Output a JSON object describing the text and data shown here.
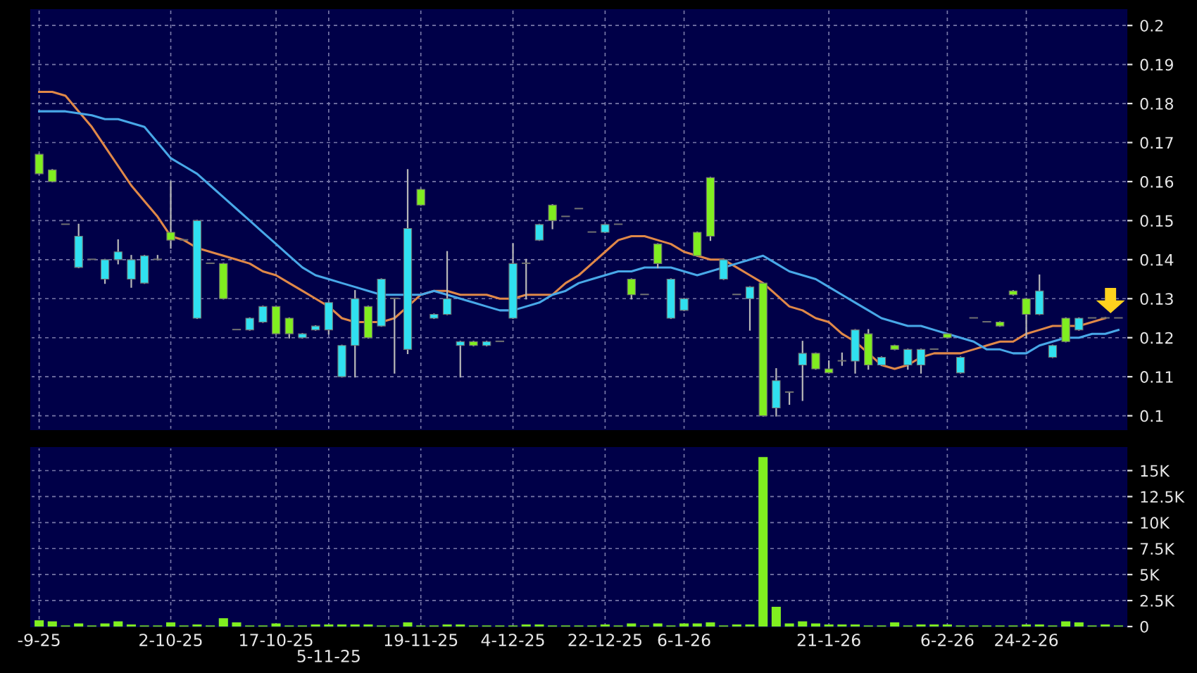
{
  "chart_data": [
    {
      "type": "candlestick",
      "tick_labels": "y",
      "grid": true,
      "legend": false,
      "categories": [
        null,
        null,
        null,
        null,
        null,
        null,
        null,
        null,
        null,
        null,
        null,
        null,
        null,
        null,
        null,
        null,
        null,
        null,
        null,
        null,
        null,
        null,
        null,
        null,
        null,
        null,
        null,
        null,
        null,
        null,
        null,
        null,
        null,
        null,
        null,
        null,
        null,
        null,
        null,
        null,
        null,
        null,
        null,
        null,
        null,
        null,
        null,
        null,
        null,
        null,
        null,
        null,
        null,
        null,
        null,
        null,
        null,
        null,
        null,
        null,
        null,
        null,
        null,
        null,
        null,
        null,
        null,
        null,
        null,
        null,
        null,
        null,
        null,
        null,
        null,
        null,
        null,
        null,
        null,
        null,
        null,
        null,
        null
      ],
      "ohlc": [
        [
          0.167,
          0.167,
          0.162,
          0.162
        ],
        [
          0.163,
          0.163,
          0.16,
          0.16
        ],
        [
          0.149,
          0.149,
          0.149,
          0.149
        ],
        [
          0.138,
          0.149,
          0.138,
          0.146
        ],
        [
          0.14,
          0.14,
          0.14,
          0.14
        ],
        [
          0.135,
          0.14,
          0.134,
          0.14
        ],
        [
          0.14,
          0.145,
          0.139,
          0.142
        ],
        [
          0.135,
          0.141,
          0.133,
          0.14
        ],
        [
          0.134,
          0.141,
          0.134,
          0.141
        ],
        [
          0.14,
          0.141,
          0.14,
          0.14
        ],
        [
          0.147,
          0.16,
          0.143,
          0.145
        ],
        [
          0.145,
          0.145,
          0.145,
          0.145
        ],
        [
          0.125,
          0.15,
          0.125,
          0.15
        ],
        [
          0.139,
          0.139,
          0.139,
          0.139
        ],
        [
          0.139,
          0.139,
          0.13,
          0.13
        ],
        [
          0.122,
          0.122,
          0.122,
          0.122
        ],
        [
          0.122,
          0.125,
          0.122,
          0.125
        ],
        [
          0.124,
          0.128,
          0.124,
          0.128
        ],
        [
          0.128,
          0.128,
          0.121,
          0.121
        ],
        [
          0.125,
          0.125,
          0.12,
          0.121
        ],
        [
          0.12,
          0.121,
          0.12,
          0.121
        ],
        [
          0.122,
          0.123,
          0.122,
          0.123
        ],
        [
          0.122,
          0.129,
          0.121,
          0.129
        ],
        [
          0.11,
          0.118,
          0.11,
          0.118
        ],
        [
          0.118,
          0.132,
          0.11,
          0.13
        ],
        [
          0.128,
          0.128,
          0.12,
          0.12
        ],
        [
          0.123,
          0.135,
          0.123,
          0.135
        ],
        [
          0.13,
          0.13,
          0.111,
          0.13
        ],
        [
          0.117,
          0.163,
          0.116,
          0.148
        ],
        [
          0.158,
          0.158,
          0.154,
          0.154
        ],
        [
          0.125,
          0.126,
          0.125,
          0.126
        ],
        [
          0.126,
          0.142,
          0.126,
          0.13
        ],
        [
          0.118,
          0.119,
          0.11,
          0.119
        ],
        [
          0.119,
          0.119,
          0.118,
          0.118
        ],
        [
          0.118,
          0.119,
          0.118,
          0.119
        ],
        [
          0.119,
          0.119,
          0.119,
          0.119
        ],
        [
          0.125,
          0.144,
          0.125,
          0.139
        ],
        [
          0.139,
          0.14,
          0.13,
          0.139
        ],
        [
          0.145,
          0.149,
          0.145,
          0.149
        ],
        [
          0.154,
          0.154,
          0.148,
          0.15
        ],
        [
          0.151,
          0.151,
          0.151,
          0.151
        ],
        [
          0.153,
          0.153,
          0.153,
          0.153
        ],
        [
          0.147,
          0.147,
          0.147,
          0.147
        ],
        [
          0.147,
          0.149,
          0.147,
          0.149
        ],
        [
          0.149,
          0.149,
          0.149,
          0.149
        ],
        [
          0.135,
          0.135,
          0.13,
          0.131
        ],
        [
          0.131,
          0.131,
          0.131,
          0.131
        ],
        [
          0.144,
          0.144,
          0.138,
          0.139
        ],
        [
          0.125,
          0.135,
          0.125,
          0.135
        ],
        [
          0.127,
          0.13,
          0.127,
          0.13
        ],
        [
          0.147,
          0.147,
          0.141,
          0.141
        ],
        [
          0.161,
          0.161,
          0.145,
          0.146
        ],
        [
          0.135,
          0.14,
          0.135,
          0.14
        ],
        [
          0.131,
          0.131,
          0.131,
          0.131
        ],
        [
          0.13,
          0.133,
          0.122,
          0.133
        ],
        [
          0.134,
          0.134,
          0.1,
          0.1
        ],
        [
          0.102,
          0.112,
          0.1,
          0.109
        ],
        [
          0.106,
          0.106,
          0.103,
          0.106
        ],
        [
          0.113,
          0.119,
          0.104,
          0.116
        ],
        [
          0.116,
          0.116,
          0.112,
          0.112
        ],
        [
          0.112,
          0.114,
          0.111,
          0.111
        ],
        [
          0.114,
          0.116,
          0.113,
          0.114
        ],
        [
          0.114,
          0.122,
          0.111,
          0.122
        ],
        [
          0.121,
          0.122,
          0.112,
          0.113
        ],
        [
          0.113,
          0.115,
          0.113,
          0.115
        ],
        [
          0.118,
          0.118,
          0.117,
          0.117
        ],
        [
          0.113,
          0.117,
          0.112,
          0.117
        ],
        [
          0.113,
          0.117,
          0.111,
          0.117
        ],
        [
          0.117,
          0.117,
          0.117,
          0.117
        ],
        [
          0.121,
          0.121,
          0.12,
          0.12
        ],
        [
          0.111,
          0.115,
          0.111,
          0.115
        ],
        [
          0.125,
          0.125,
          0.125,
          0.125
        ],
        [
          0.124,
          0.124,
          0.124,
          0.124
        ],
        [
          0.124,
          0.124,
          0.123,
          0.123
        ],
        [
          0.132,
          0.132,
          0.131,
          0.131
        ],
        [
          0.13,
          0.13,
          0.12,
          0.126
        ],
        [
          0.126,
          0.136,
          0.126,
          0.132
        ],
        [
          0.115,
          0.118,
          0.115,
          0.118
        ],
        [
          0.125,
          0.125,
          0.119,
          0.119
        ],
        [
          0.122,
          0.125,
          0.122,
          0.125
        ],
        [
          0.125,
          0.125,
          0.125,
          0.125
        ],
        [
          0.125,
          0.125,
          0.125,
          0.125
        ],
        [
          0.125,
          0.125,
          0.125,
          0.125
        ]
      ],
      "colors": [
        "#80ee20",
        "#80ee20",
        "#b0b0b0",
        "#30e0f0",
        "#b0b0b0",
        "#30e0f0",
        "#30e0f0",
        "#30e0f0",
        "#30e0f0",
        "#b0b0b0",
        "#80ee20",
        "#b0b0b0",
        "#30e0f0",
        "#b0b0b0",
        "#80ee20",
        "#b0b0b0",
        "#30e0f0",
        "#30e0f0",
        "#80ee20",
        "#80ee20",
        "#30e0f0",
        "#30e0f0",
        "#30e0f0",
        "#30e0f0",
        "#30e0f0",
        "#80ee20",
        "#30e0f0",
        "#b0b0b0",
        "#30e0f0",
        "#80ee20",
        "#30e0f0",
        "#30e0f0",
        "#30e0f0",
        "#80ee20",
        "#30e0f0",
        "#b0b0b0",
        "#30e0f0",
        "#b0b0b0",
        "#30e0f0",
        "#80ee20",
        "#b0b0b0",
        "#b0b0b0",
        "#b0b0b0",
        "#30e0f0",
        "#b0b0b0",
        "#80ee20",
        "#b0b0b0",
        "#80ee20",
        "#30e0f0",
        "#30e0f0",
        "#80ee20",
        "#80ee20",
        "#30e0f0",
        "#b0b0b0",
        "#30e0f0",
        "#80ee20",
        "#30e0f0",
        "#b0b0b0",
        "#30e0f0",
        "#80ee20",
        "#80ee20",
        "#b0b0b0",
        "#30e0f0",
        "#80ee20",
        "#30e0f0",
        "#80ee20",
        "#30e0f0",
        "#30e0f0",
        "#b0b0b0",
        "#80ee20",
        "#30e0f0",
        "#b0b0b0",
        "#b0b0b0",
        "#80ee20",
        "#80ee20",
        "#80ee20",
        "#30e0f0",
        "#30e0f0",
        "#80ee20",
        "#30e0f0",
        "#b0b0b0",
        "#b0b0b0",
        "#b0b0b0"
      ],
      "series": [
        {
          "type": "line",
          "color": "#e08848",
          "values": [
            0.183,
            0.183,
            0.182,
            0.178,
            0.174,
            0.169,
            0.164,
            0.159,
            0.155,
            0.151,
            0.146,
            0.145,
            0.143,
            0.142,
            0.141,
            0.14,
            0.139,
            0.137,
            0.136,
            0.134,
            0.132,
            0.13,
            0.128,
            0.125,
            0.124,
            0.124,
            0.124,
            0.125,
            0.128,
            0.131,
            0.132,
            0.132,
            0.131,
            0.131,
            0.131,
            0.13,
            0.13,
            0.131,
            0.131,
            0.131,
            0.134,
            0.136,
            0.139,
            0.142,
            0.145,
            0.146,
            0.146,
            0.145,
            0.144,
            0.142,
            0.141,
            0.14,
            0.14,
            0.138,
            0.136,
            0.134,
            0.131,
            0.128,
            0.127,
            0.125,
            0.124,
            0.121,
            0.119,
            0.116,
            0.113,
            0.112,
            0.113,
            0.115,
            0.116,
            0.116,
            0.116,
            0.117,
            0.118,
            0.119,
            0.119,
            0.121,
            0.122,
            0.123,
            0.123,
            0.123,
            0.124,
            0.125,
            null
          ]
        },
        {
          "type": "line",
          "color": "#48a8e8",
          "values": [
            0.178,
            0.178,
            0.178,
            0.1775,
            0.177,
            0.176,
            0.176,
            0.175,
            0.174,
            0.17,
            0.166,
            0.164,
            0.162,
            0.159,
            0.156,
            0.153,
            0.15,
            0.147,
            0.144,
            0.141,
            0.138,
            0.136,
            0.135,
            0.134,
            0.133,
            0.132,
            0.131,
            0.131,
            0.131,
            0.131,
            0.132,
            0.131,
            0.13,
            0.129,
            0.128,
            0.127,
            0.127,
            0.128,
            0.129,
            0.131,
            0.132,
            0.134,
            0.135,
            0.136,
            0.137,
            0.137,
            0.138,
            0.138,
            0.138,
            0.137,
            0.136,
            0.137,
            0.138,
            0.139,
            0.14,
            0.141,
            0.139,
            0.137,
            0.136,
            0.135,
            0.133,
            0.131,
            0.129,
            0.127,
            0.125,
            0.124,
            0.123,
            0.123,
            0.122,
            0.121,
            0.12,
            0.119,
            0.117,
            0.117,
            0.116,
            0.116,
            0.118,
            0.119,
            0.12,
            0.12,
            0.121,
            0.121,
            0.122
          ]
        }
      ],
      "ylim": [
        0.0965,
        0.204
      ],
      "yticks": [
        0.1,
        0.11,
        0.12,
        0.13,
        0.14,
        0.15,
        0.16,
        0.17,
        0.18,
        0.19,
        0.2
      ]
    },
    {
      "type": "bar",
      "grid": true,
      "legend": false,
      "color": "#80ee20",
      "categories": [
        "-9-25",
        null,
        null,
        null,
        null,
        null,
        null,
        null,
        null,
        null,
        "2-10-25",
        null,
        null,
        null,
        null,
        null,
        null,
        null,
        "17-10-25",
        null,
        null,
        null,
        "5-11-25",
        null,
        null,
        null,
        null,
        null,
        null,
        "19-11-25",
        null,
        null,
        null,
        null,
        null,
        null,
        "4-12-25",
        null,
        null,
        null,
        null,
        null,
        null,
        "22-12-25",
        null,
        null,
        null,
        null,
        null,
        "6-1-26",
        null,
        null,
        null,
        null,
        null,
        null,
        null,
        null,
        null,
        null,
        "21-1-26",
        null,
        null,
        null,
        null,
        null,
        null,
        null,
        null,
        "6-2-26",
        null,
        null,
        null,
        null,
        null,
        "24-2-26",
        null,
        null,
        null,
        null,
        null,
        null,
        null
      ],
      "values": [
        0.6,
        0.5,
        0.1,
        0.3,
        0.1,
        0.3,
        0.5,
        0.2,
        0.1,
        0.1,
        0.4,
        0.1,
        0.2,
        0.1,
        0.8,
        0.4,
        0.1,
        0.1,
        0.3,
        0.1,
        0.1,
        0.2,
        0.2,
        0.2,
        0.2,
        0.2,
        0.1,
        0.1,
        0.4,
        0.1,
        0.1,
        0.2,
        0.2,
        0.1,
        0.1,
        0.1,
        0.1,
        0.2,
        0.2,
        0.1,
        0.1,
        0.1,
        0.1,
        0.2,
        0.1,
        0.3,
        0.1,
        0.3,
        0.1,
        0.3,
        0.3,
        0.4,
        0.1,
        0.2,
        0.2,
        16.3,
        1.9,
        0.3,
        0.5,
        0.3,
        0.2,
        0.2,
        0.2,
        0.1,
        0.1,
        0.4,
        0.1,
        0.2,
        0.2,
        0.2,
        0.1,
        0.1,
        0.1,
        0.1,
        0.1,
        0.2,
        0.2,
        0.1,
        0.5,
        0.4,
        0.1,
        0.2,
        0.1
      ],
      "ylim": [
        0,
        17.2
      ],
      "yticks": [
        0,
        {
          "value": 2.5,
          "label": "2.5K"
        },
        {
          "value": 5,
          "label": "5K"
        },
        {
          "value": 7.5,
          "label": "7.5K"
        },
        {
          "value": 10,
          "label": "10K"
        },
        {
          "value": 12.5,
          "label": "12.5K"
        },
        {
          "value": 15,
          "label": "15K"
        }
      ]
    }
  ]
}
